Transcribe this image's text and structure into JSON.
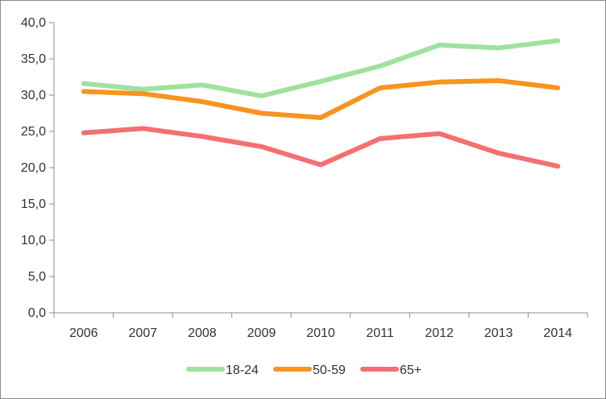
{
  "chart_data": {
    "type": "line",
    "categories": [
      "2006",
      "2007",
      "2008",
      "2009",
      "2010",
      "2011",
      "2012",
      "2013",
      "2014"
    ],
    "series": [
      {
        "name": "18-24",
        "color": "#9ee29e",
        "values": [
          31.6,
          30.8,
          31.4,
          29.9,
          31.9,
          34.0,
          36.9,
          36.5,
          37.5
        ]
      },
      {
        "name": "50-59",
        "color": "#f7941d",
        "values": [
          30.5,
          30.2,
          29.1,
          27.5,
          26.9,
          31.0,
          31.8,
          32.0,
          31.0
        ]
      },
      {
        "name": "65+",
        "color": "#f47070",
        "values": [
          24.8,
          25.4,
          24.3,
          22.9,
          20.4,
          24.0,
          24.7,
          22.0,
          20.2
        ]
      }
    ],
    "yticks": [
      "0,0",
      "5,0",
      "10,0",
      "15,0",
      "20,0",
      "25,0",
      "30,0",
      "35,0",
      "40,0"
    ],
    "ylim": [
      0,
      40
    ],
    "grid": false,
    "legend_position": "bottom"
  }
}
